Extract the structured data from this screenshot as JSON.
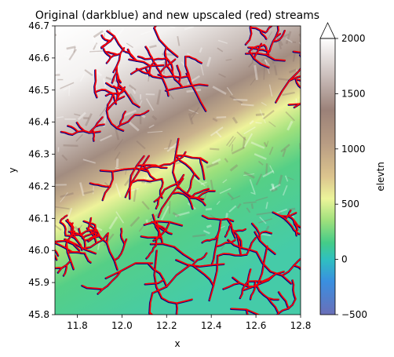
{
  "chart_data": {
    "type": "heatmap",
    "title": "Original (darkblue) and new upscaled (red) streams",
    "xlabel": "x",
    "ylabel": "y",
    "xlim": [
      11.7,
      12.8
    ],
    "ylim": [
      45.8,
      46.7
    ],
    "x_ticks": [
      "11.8",
      "12.0",
      "12.2",
      "12.4",
      "12.6",
      "12.8"
    ],
    "x_tick_values": [
      11.8,
      12.0,
      12.2,
      12.4,
      12.6,
      12.8
    ],
    "y_ticks": [
      "45.8",
      "45.9",
      "46.0",
      "46.1",
      "46.2",
      "46.3",
      "46.4",
      "46.5",
      "46.6",
      "46.7"
    ],
    "y_tick_values": [
      45.8,
      45.9,
      46.0,
      46.1,
      46.2,
      46.3,
      46.4,
      46.5,
      46.6,
      46.7
    ],
    "colorbar": {
      "label": "elevtn",
      "range": [
        -500,
        2000
      ],
      "extend": "max",
      "ticks": [
        "−500",
        "0",
        "500",
        "1000",
        "1500",
        "2000"
      ],
      "tick_values": [
        -500,
        0,
        500,
        1000,
        1500,
        2000
      ],
      "colormap": "terrain"
    },
    "colors": {
      "original_streams": "#00008b",
      "upscaled_streams": "#ff0000"
    }
  }
}
